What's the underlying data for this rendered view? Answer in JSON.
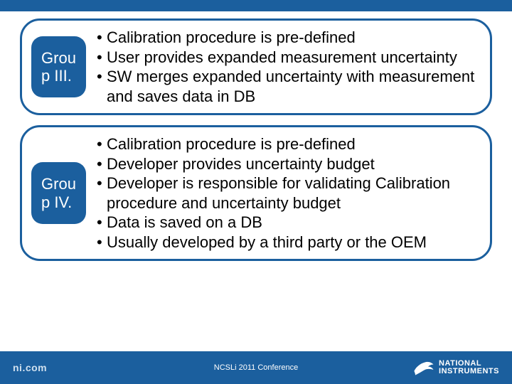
{
  "colors": {
    "brand": "#1b5f9e",
    "slide_bg": "#ffffff",
    "text": "#000000",
    "footer_text": "#ffffff",
    "footer_left_text": "#cfe0ef"
  },
  "typography": {
    "body_fontsize_pt": 17,
    "label_fontsize_pt": 17,
    "footer_center_fontsize_pt": 8,
    "footer_left_fontsize_pt": 11
  },
  "groups": [
    {
      "label": "Grou\np III.",
      "bullets": [
        "Calibration procedure is pre-defined",
        "User provides expanded measurement uncertainty",
        "SW merges expanded uncertainty with measurement and saves data in DB"
      ]
    },
    {
      "label": "Grou\np IV.",
      "bullets": [
        "Calibration procedure is pre-defined",
        "Developer provides uncertainty budget",
        "Developer is responsible for validating Calibration procedure and uncertainty budget",
        "Data is saved on a DB",
        "Usually developed by a third party or the OEM"
      ]
    }
  ],
  "footer": {
    "left": "ni.com",
    "center": "NCSLi 2011 Conference",
    "logo_line1": "NATIONAL",
    "logo_line2": "INSTRUMENTS"
  }
}
